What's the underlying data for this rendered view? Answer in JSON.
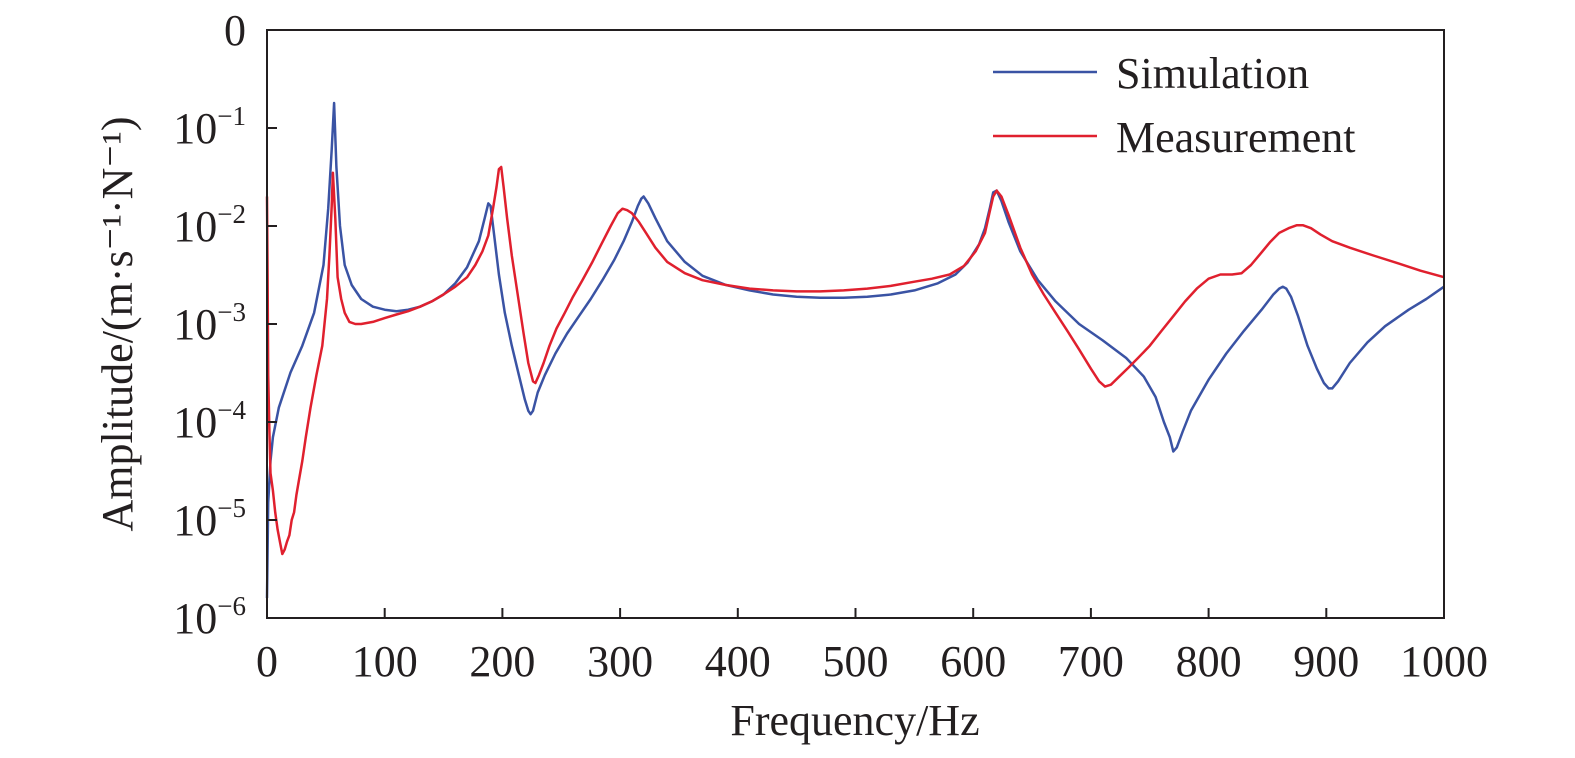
{
  "chart_data": {
    "type": "line",
    "xlabel": "Frequency/Hz",
    "ylabel": "Amplitude/(m·s⁻¹·N⁻¹)",
    "xlim": [
      0,
      1000
    ],
    "ylim": [
      1e-06,
      1
    ],
    "yscale": "log",
    "grid": false,
    "legend_position": "top-right",
    "x_ticks": [
      0,
      100,
      200,
      300,
      400,
      500,
      600,
      700,
      800,
      900,
      1000
    ],
    "x_tick_labels": [
      "0",
      "100",
      "200",
      "300",
      "400",
      "500",
      "600",
      "700",
      "800",
      "900",
      "1000"
    ],
    "y_ticks": [
      {
        "value": 1e-06,
        "base": "10",
        "exp": "−6"
      },
      {
        "value": 1e-05,
        "base": "10",
        "exp": "−5"
      },
      {
        "value": 0.0001,
        "base": "10",
        "exp": "−4"
      },
      {
        "value": 0.001,
        "base": "10",
        "exp": "−3"
      },
      {
        "value": 0.01,
        "base": "10",
        "exp": "−2"
      },
      {
        "value": 0.1,
        "base": "10",
        "exp": "−1"
      },
      {
        "value": 1,
        "base": "0",
        "exp": ""
      }
    ],
    "series": [
      {
        "name": "Simulation",
        "color": "#3a53a4",
        "x": [
          0,
          1,
          3,
          5,
          10,
          20,
          30,
          40,
          48,
          52,
          55,
          57,
          59,
          62,
          66,
          72,
          80,
          90,
          100,
          110,
          120,
          130,
          140,
          150,
          160,
          170,
          180,
          185,
          188,
          190,
          193,
          197,
          202,
          208,
          214,
          219,
          222,
          224,
          226,
          230,
          236,
          245,
          255,
          265,
          275,
          285,
          295,
          303,
          310,
          315,
          318,
          320,
          324,
          330,
          340,
          355,
          370,
          390,
          410,
          430,
          450,
          470,
          490,
          510,
          530,
          550,
          570,
          585,
          595,
          605,
          610,
          614,
          617,
          620,
          624,
          630,
          640,
          655,
          670,
          690,
          710,
          730,
          745,
          755,
          762,
          767,
          770,
          773,
          778,
          785,
          800,
          815,
          830,
          845,
          855,
          860,
          863,
          866,
          870,
          876,
          884,
          892,
          898,
          902,
          905,
          910,
          920,
          935,
          950,
          970,
          985,
          1000
        ],
        "y": [
          1.6e-06,
          1.5e-05,
          4e-05,
          7e-05,
          0.00014,
          0.00032,
          0.0006,
          0.0013,
          0.004,
          0.015,
          0.06,
          0.18,
          0.04,
          0.01,
          0.004,
          0.0025,
          0.0018,
          0.0015,
          0.0014,
          0.00135,
          0.0014,
          0.0015,
          0.0017,
          0.002,
          0.0026,
          0.0038,
          0.007,
          0.012,
          0.017,
          0.016,
          0.008,
          0.0032,
          0.0013,
          0.0006,
          0.0003,
          0.00017,
          0.00013,
          0.00012,
          0.00013,
          0.0002,
          0.0003,
          0.0005,
          0.0008,
          0.0012,
          0.0018,
          0.0028,
          0.0045,
          0.007,
          0.011,
          0.016,
          0.019,
          0.02,
          0.017,
          0.012,
          0.007,
          0.0043,
          0.0031,
          0.0025,
          0.0022,
          0.002,
          0.0019,
          0.00185,
          0.00185,
          0.0019,
          0.002,
          0.0022,
          0.0026,
          0.0032,
          0.0042,
          0.0065,
          0.0095,
          0.015,
          0.022,
          0.023,
          0.018,
          0.011,
          0.0055,
          0.0028,
          0.0017,
          0.001,
          0.00068,
          0.00045,
          0.00029,
          0.00018,
          0.0001,
          7e-05,
          5e-05,
          5.5e-05,
          8e-05,
          0.00013,
          0.00027,
          0.0005,
          0.00085,
          0.0014,
          0.002,
          0.0023,
          0.0024,
          0.0023,
          0.0019,
          0.0012,
          0.0006,
          0.00035,
          0.00025,
          0.00022,
          0.00022,
          0.00026,
          0.0004,
          0.00065,
          0.00095,
          0.0014,
          0.0018,
          0.0024
        ]
      },
      {
        "name": "Measurement",
        "color": "#e0202e",
        "x": [
          0,
          0.5,
          1,
          2,
          3,
          5,
          7,
          9,
          11,
          13,
          15,
          17,
          19,
          21,
          23,
          25,
          27,
          30,
          33,
          37,
          42,
          47,
          51,
          53,
          55,
          56,
          58,
          60,
          63,
          66,
          70,
          75,
          80,
          90,
          100,
          110,
          120,
          130,
          140,
          150,
          160,
          170,
          177,
          183,
          188,
          192,
          195,
          197,
          199,
          201,
          204,
          208,
          213,
          218,
          222,
          226,
          228,
          231,
          235,
          240,
          246,
          253,
          260,
          268,
          276,
          284,
          292,
          298,
          302,
          306,
          310,
          316,
          322,
          330,
          340,
          355,
          370,
          390,
          410,
          430,
          450,
          470,
          490,
          510,
          530,
          550,
          565,
          580,
          592,
          602,
          610,
          614,
          617,
          620,
          624,
          630,
          640,
          650,
          660,
          670,
          680,
          690,
          700,
          707,
          712,
          717,
          724,
          732,
          740,
          750,
          760,
          770,
          780,
          790,
          800,
          810,
          820,
          828,
          836,
          844,
          852,
          860,
          868,
          875,
          880,
          887,
          895,
          905,
          920,
          940,
          960,
          980,
          1000
        ],
        "y": [
          0.02,
          0.003,
          0.0003,
          8e-05,
          3e-05,
          2e-05,
          1.2e-05,
          8e-06,
          6e-06,
          4.5e-06,
          5e-06,
          6e-06,
          7e-06,
          1e-05,
          1.2e-05,
          1.8e-05,
          2.5e-05,
          4e-05,
          7e-05,
          0.00014,
          0.0003,
          0.0006,
          0.0018,
          0.005,
          0.016,
          0.035,
          0.012,
          0.003,
          0.0018,
          0.0013,
          0.00105,
          0.001,
          0.001,
          0.00105,
          0.00115,
          0.00125,
          0.00135,
          0.0015,
          0.0017,
          0.002,
          0.0024,
          0.003,
          0.004,
          0.0055,
          0.008,
          0.015,
          0.025,
          0.038,
          0.04,
          0.025,
          0.012,
          0.005,
          0.002,
          0.0008,
          0.0004,
          0.00026,
          0.00025,
          0.0003,
          0.0004,
          0.0006,
          0.0009,
          0.0013,
          0.0019,
          0.0028,
          0.0042,
          0.0065,
          0.01,
          0.0135,
          0.015,
          0.0145,
          0.0135,
          0.011,
          0.0085,
          0.006,
          0.0043,
          0.0033,
          0.0028,
          0.0025,
          0.0023,
          0.0022,
          0.00215,
          0.00215,
          0.0022,
          0.0023,
          0.00245,
          0.0027,
          0.0029,
          0.0032,
          0.0039,
          0.0055,
          0.0085,
          0.014,
          0.02,
          0.023,
          0.02,
          0.013,
          0.006,
          0.0032,
          0.002,
          0.0013,
          0.00085,
          0.00055,
          0.00035,
          0.00026,
          0.00023,
          0.00024,
          0.00029,
          0.00036,
          0.00045,
          0.0006,
          0.00085,
          0.0012,
          0.0017,
          0.0023,
          0.0029,
          0.0032,
          0.0032,
          0.0033,
          0.004,
          0.0052,
          0.0068,
          0.0085,
          0.0095,
          0.0102,
          0.0102,
          0.0095,
          0.0082,
          0.007,
          0.006,
          0.005,
          0.0042,
          0.0035,
          0.003
        ]
      }
    ]
  }
}
